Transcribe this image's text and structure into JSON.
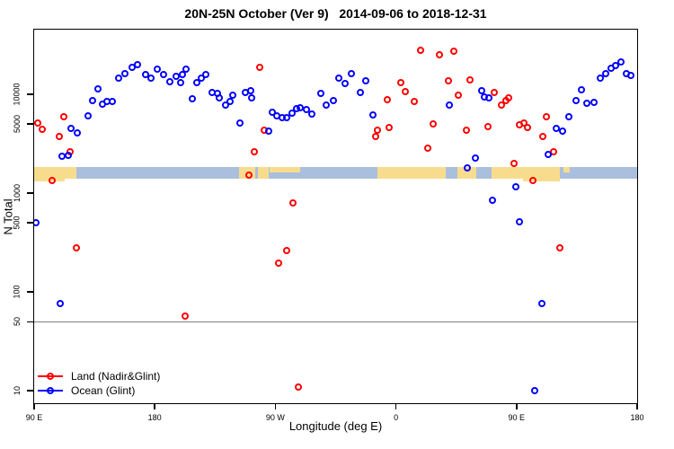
{
  "chart_data": {
    "type": "scatter",
    "title": "20N-25N October (Ver 9)   2014-09-06 to 2018-12-31",
    "xlabel": "Longitude (deg E)",
    "ylabel": "N Total",
    "x_axis": {
      "note": "longitude wraps eastward: axis degrees 90..540 (90E -> 180 -> 90W -> 0 -> 90E -> 180)",
      "range": [
        90,
        540
      ],
      "ticks": [
        {
          "pos": 90,
          "label": "90 E"
        },
        {
          "pos": 180,
          "label": "180"
        },
        {
          "pos": 270,
          "label": "90 W"
        },
        {
          "pos": 360,
          "label": "0"
        },
        {
          "pos": 450,
          "label": "90 E"
        },
        {
          "pos": 540,
          "label": "180"
        }
      ]
    },
    "y_axis": {
      "scale": "log",
      "range": [
        7.5,
        45000
      ],
      "ticks": [
        {
          "value": 10,
          "label": "10"
        },
        {
          "value": 50,
          "label": "50"
        },
        {
          "value": 100,
          "label": "100"
        },
        {
          "value": 500,
          "label": "500"
        },
        {
          "value": 1000,
          "label": "1000"
        },
        {
          "value": 5000,
          "label": "5000"
        },
        {
          "value": 10000,
          "label": "10000"
        }
      ]
    },
    "reference_line": {
      "value": 50,
      "color": "#808080"
    },
    "map_strip": {
      "value_top": 1820,
      "value_bottom": 1390,
      "ocean_color": "#aabfdd",
      "land_color": "#f8dc8e",
      "land_segments": [
        {
          "from": 90,
          "to": 121.5,
          "part": "full"
        },
        {
          "from": 242.9,
          "to": 255.0,
          "part": "full"
        },
        {
          "from": 257.0,
          "to": 265.1,
          "part": "full"
        },
        {
          "from": 265.8,
          "to": 288.5,
          "part": "top"
        },
        {
          "from": 346.2,
          "to": 397.2,
          "part": "full"
        },
        {
          "from": 405.9,
          "to": 420.0,
          "part": "full"
        },
        {
          "from": 431.4,
          "to": 482.3,
          "part": "full"
        },
        {
          "from": 485.0,
          "to": 489.7,
          "part": "top"
        }
      ],
      "below_segments": [
        {
          "from": 90,
          "to": 112.8
        },
        {
          "from": 455,
          "to": 482
        }
      ]
    },
    "series": [
      {
        "name": "Land (Nadir&Glint)",
        "color": "#ff0000",
        "marker": "open-circle",
        "points": [
          [
            92.7,
            5100
          ],
          [
            96,
            4400
          ],
          [
            108.8,
            3700
          ],
          [
            112.1,
            5900
          ],
          [
            116.8,
            2600
          ],
          [
            103.4,
            1340
          ],
          [
            121.5,
            280
          ],
          [
            202.7,
            57
          ],
          [
            258.3,
            18700
          ],
          [
            261.7,
            4300
          ],
          [
            254.3,
            2600
          ],
          [
            250.3,
            1520
          ],
          [
            272.4,
            195
          ],
          [
            278.5,
            260
          ],
          [
            283.2,
            790
          ],
          [
            287.2,
            11
          ],
          [
            344.8,
            3700
          ],
          [
            346.2,
            4300
          ],
          [
            353.6,
            8800
          ],
          [
            354.9,
            4600
          ],
          [
            363.6,
            13100
          ],
          [
            367,
            10600
          ],
          [
            373.7,
            8500
          ],
          [
            378.4,
            28000
          ],
          [
            383.8,
            2850
          ],
          [
            387.8,
            5000
          ],
          [
            392.5,
            25000
          ],
          [
            399.2,
            13700
          ],
          [
            403.2,
            27000
          ],
          [
            406.6,
            9800
          ],
          [
            412.6,
            4300
          ],
          [
            415.3,
            14000
          ],
          [
            428.7,
            4700
          ],
          [
            433.4,
            10400
          ],
          [
            438.8,
            7800
          ],
          [
            442.1,
            8600
          ],
          [
            444.1,
            9200
          ],
          [
            448.1,
            2000
          ],
          [
            452.1,
            4900
          ],
          [
            455.5,
            5100
          ],
          [
            458.2,
            4600
          ],
          [
            462.2,
            1340
          ],
          [
            469.6,
            3700
          ],
          [
            472.2,
            5900
          ],
          [
            477.6,
            2600
          ],
          [
            482.3,
            280
          ]
        ]
      },
      {
        "name": "Ocean (Glint)",
        "color": "#0000ff",
        "marker": "open-circle",
        "points": [
          [
            91.3,
            500
          ],
          [
            109.4,
            76
          ],
          [
            110.8,
            2360
          ],
          [
            115.5,
            2400
          ],
          [
            117.5,
            4500
          ],
          [
            122.2,
            4100
          ],
          [
            130.2,
            6000
          ],
          [
            133.6,
            8600
          ],
          [
            137.6,
            11300
          ],
          [
            141,
            7900
          ],
          [
            144.3,
            8500
          ],
          [
            148.3,
            8500
          ],
          [
            153,
            14600
          ],
          [
            157.7,
            16200
          ],
          [
            163.1,
            18700
          ],
          [
            167.1,
            20000
          ],
          [
            173.2,
            15800
          ],
          [
            177.2,
            14600
          ],
          [
            181.9,
            18000
          ],
          [
            186.6,
            15800
          ],
          [
            191.3,
            13400
          ],
          [
            196,
            15200
          ],
          [
            199.3,
            13100
          ],
          [
            200.7,
            15800
          ],
          [
            203.3,
            18000
          ],
          [
            208,
            9000
          ],
          [
            211.4,
            13100
          ],
          [
            214.7,
            14400
          ],
          [
            218.1,
            15800
          ],
          [
            222.8,
            10400
          ],
          [
            226.8,
            10200
          ],
          [
            228.2,
            9200
          ],
          [
            232.9,
            7800
          ],
          [
            236.2,
            8500
          ],
          [
            238.2,
            9800
          ],
          [
            243.6,
            5100
          ],
          [
            247.6,
            10400
          ],
          [
            251.6,
            10900
          ],
          [
            252.3,
            9200
          ],
          [
            265,
            4200
          ],
          [
            267.7,
            6600
          ],
          [
            271.1,
            6000
          ],
          [
            275.1,
            5800
          ],
          [
            278.5,
            5800
          ],
          [
            282.5,
            6500
          ],
          [
            285.8,
            7200
          ],
          [
            288.5,
            7300
          ],
          [
            293.2,
            7000
          ],
          [
            297.2,
            6300
          ],
          [
            303.9,
            10200
          ],
          [
            308,
            7800
          ],
          [
            313.3,
            8600
          ],
          [
            317.3,
            14600
          ],
          [
            322,
            12900
          ],
          [
            326.7,
            16200
          ],
          [
            333.4,
            10400
          ],
          [
            337.5,
            13700
          ],
          [
            342.8,
            6200
          ],
          [
            399.8,
            7800
          ],
          [
            413.3,
            1800
          ],
          [
            419.3,
            2260
          ],
          [
            424,
            10900
          ],
          [
            426,
            9400
          ],
          [
            429.4,
            9200
          ],
          [
            432.1,
            850
          ],
          [
            449.5,
            1160
          ],
          [
            452.1,
            510
          ],
          [
            468.9,
            76
          ],
          [
            463.6,
            10
          ],
          [
            473.6,
            2460
          ],
          [
            479.6,
            4500
          ],
          [
            484.3,
            4200
          ],
          [
            489,
            5900
          ],
          [
            494.4,
            8600
          ],
          [
            498.4,
            11200
          ],
          [
            502.4,
            8100
          ],
          [
            507.7,
            8300
          ],
          [
            512.4,
            14600
          ],
          [
            516.5,
            16200
          ],
          [
            520.5,
            18300
          ],
          [
            523.8,
            19400
          ],
          [
            527.9,
            21200
          ],
          [
            531.9,
            16200
          ],
          [
            535.2,
            15500
          ]
        ]
      }
    ],
    "legend": {
      "position": "bottom-left",
      "entries": [
        "Land (Nadir&Glint)",
        "Ocean (Glint)"
      ]
    }
  }
}
